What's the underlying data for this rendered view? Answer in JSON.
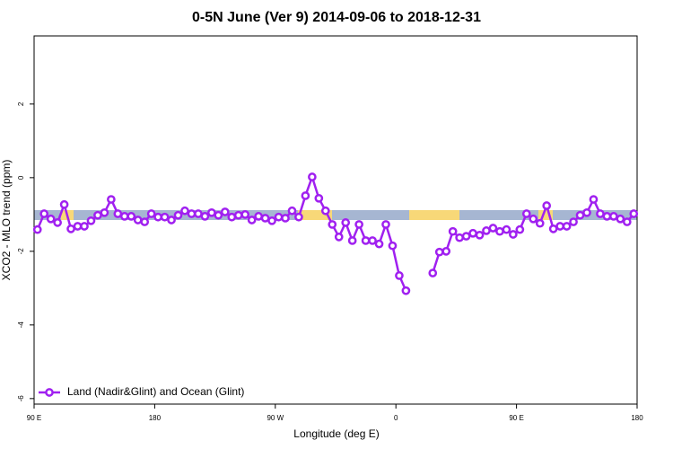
{
  "chart_data": {
    "type": "line",
    "title": "0-5N June (Ver 9)   2014-09-06 to 2018-12-31",
    "xlabel": "Longitude (deg E)",
    "ylabel": "XCO2 - MLO trend (ppm)",
    "xlim": [
      90,
      540
    ],
    "ylim": [
      -6.15,
      3.85
    ],
    "xticks": [
      {
        "value": 90,
        "label": "90 E"
      },
      180,
      {
        "value": 270,
        "label": "90 W"
      },
      {
        "value": 360,
        "label": "0"
      },
      {
        "value": 450,
        "label": "90 E"
      },
      {
        "value": 540,
        "label": "180"
      }
    ],
    "yticks": [
      -6,
      -4,
      -2,
      0,
      2
    ],
    "legend": "bottom-left",
    "x": [
      92.5,
      97.5,
      102.5,
      107.5,
      112.5,
      117.5,
      122.5,
      127.5,
      132.5,
      137.5,
      142.5,
      147.5,
      152.5,
      157.5,
      162.5,
      167.5,
      172.5,
      177.5,
      182.5,
      187.5,
      192.5,
      197.5,
      202.5,
      207.5,
      212.5,
      217.5,
      222.5,
      227.5,
      232.5,
      237.5,
      242.5,
      247.5,
      252.5,
      257.5,
      262.5,
      267.5,
      272.5,
      277.5,
      282.5,
      287.5,
      292.5,
      297.5,
      302.5,
      307.5,
      312.5,
      317.5,
      322.5,
      327.5,
      332.5,
      337.5,
      342.5,
      347.5,
      352.5,
      357.5,
      362.5,
      367.5,
      372.5,
      377.5,
      382.5,
      387.5,
      392.5,
      397.5,
      402.5,
      407.5,
      412.5,
      417.5,
      422.5,
      427.5,
      432.5,
      437.5,
      442.5,
      447.5,
      452.5,
      457.5,
      462.5,
      467.5,
      472.5,
      477.5,
      482.5,
      487.5,
      492.5,
      497.5,
      502.5,
      507.5,
      512.5,
      517.5,
      522.5,
      527.5,
      532.5,
      537.5
    ],
    "series": [
      {
        "name": "Land (Nadir&Glint) and Ocean (Glint)",
        "color": "#a020f0",
        "values": [
          -1.41,
          -0.98,
          -1.12,
          -1.22,
          -0.73,
          -1.39,
          -1.32,
          -1.32,
          -1.17,
          -1.02,
          -0.95,
          -0.59,
          -0.98,
          -1.05,
          -1.05,
          -1.15,
          -1.2,
          -0.98,
          -1.07,
          -1.07,
          -1.15,
          -1.02,
          -0.9,
          -0.98,
          -0.98,
          -1.05,
          -0.95,
          -1.02,
          -0.93,
          -1.07,
          -1.02,
          -1.0,
          -1.15,
          -1.05,
          -1.1,
          -1.17,
          -1.07,
          -1.1,
          -0.9,
          -1.07,
          -0.49,
          0.02,
          -0.56,
          -0.9,
          -1.27,
          -1.61,
          -1.22,
          -1.71,
          -1.27,
          -1.71,
          -1.71,
          -1.8,
          -1.27,
          -1.85,
          -2.66,
          -3.07,
          null,
          null,
          null,
          -2.59,
          -2.02,
          -2.0,
          -1.46,
          -1.63,
          -1.59,
          -1.51,
          -1.56,
          -1.44,
          -1.37,
          -1.46,
          -1.41,
          -1.54,
          -1.41,
          -0.98,
          -1.12,
          -1.24,
          -0.76,
          -1.39,
          -1.32,
          -1.32,
          -1.2,
          -1.02,
          -0.95,
          -0.59,
          -0.98,
          -1.05,
          -1.05,
          -1.12,
          -1.2,
          -0.98
        ]
      }
    ]
  }
}
